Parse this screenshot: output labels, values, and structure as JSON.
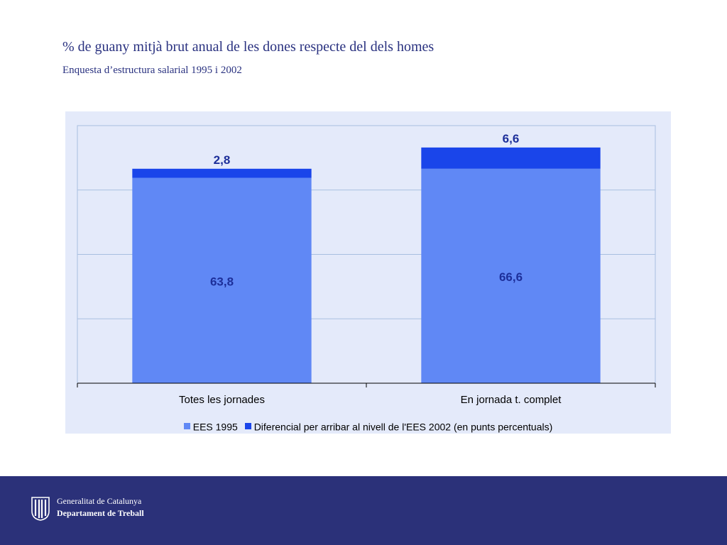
{
  "header": {
    "title": "% de guany mitjà brut anual de les dones respecte del dels homes",
    "subtitle": "Enquesta d’estructura salarial 1995 i 2002"
  },
  "chart_data": {
    "type": "bar",
    "stacked": true,
    "categories": [
      "Totes les jornades",
      "En jornada t. complet"
    ],
    "series": [
      {
        "name": "EES 1995",
        "values": [
          63.8,
          66.6
        ],
        "labels": [
          "63,8",
          "66,6"
        ],
        "color": "#6088f5"
      },
      {
        "name": "Diferencial per arribar al nivell de l'EES 2002 (en punts percentuals)",
        "values": [
          2.8,
          6.6
        ],
        "labels": [
          "2,8",
          "6,6"
        ],
        "color": "#1a45ea"
      }
    ],
    "ylim": [
      0,
      80
    ],
    "grid": true,
    "legend": "bottom",
    "title": "",
    "xlabel": "",
    "ylabel": ""
  },
  "colors": {
    "panel_bg": "#e4eafa",
    "gridline": "#a8bfe0",
    "label_color": "#1d2f9a",
    "footer_bg": "#2b3179"
  },
  "footer": {
    "org_name": "Generalitat de Catalunya",
    "department": "Departament de Treball",
    "logo_icon": "generalitat-logo-icon"
  }
}
